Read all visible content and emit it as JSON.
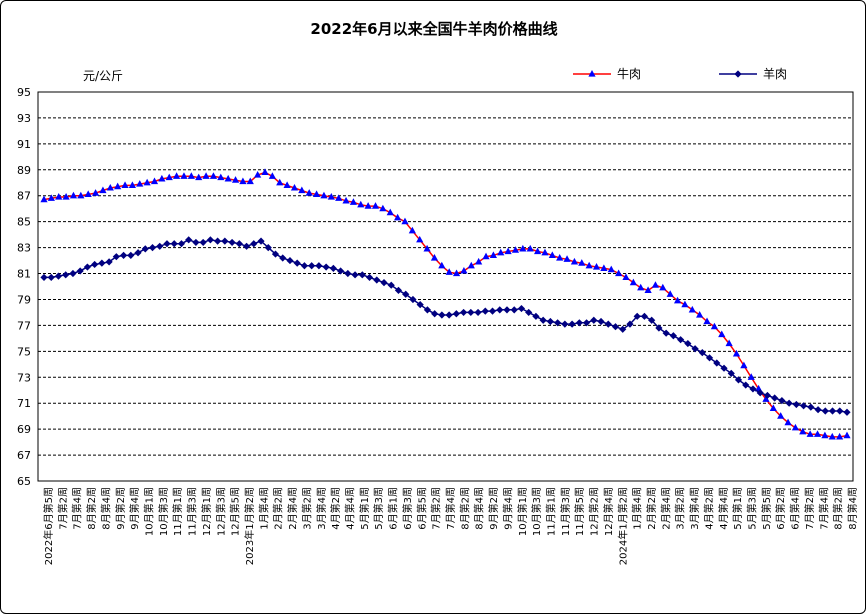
{
  "chart_data": {
    "type": "line",
    "title": "2022年6月以来全国牛羊肉价格曲线",
    "ylabel": "元/公斤",
    "xlabel": "",
    "ylim": [
      65,
      95
    ],
    "yticks": [
      65,
      67,
      69,
      71,
      73,
      75,
      77,
      79,
      81,
      83,
      85,
      87,
      89,
      91,
      93,
      95
    ],
    "grid": true,
    "legend_position": "top-right",
    "x_tick_labels": [
      "2022年6月第5周",
      "7月第2周",
      "7月第4周",
      "8月第2周",
      "8月第4周",
      "9月第2周",
      "9月第4周",
      "10月第1周",
      "10月第3周",
      "11月第1周",
      "11月第3周",
      "12月第1周",
      "12月第3周",
      "12月第5周",
      "2023年1月第2周",
      "1月第4周",
      "2月第2周",
      "2月第4周",
      "3月第2周",
      "3月第4周",
      "4月第2周",
      "4月第4周",
      "5月第1周",
      "5月第3周",
      "6月第1周",
      "6月第3周",
      "6月第5周",
      "7月第2周",
      "7月第4周",
      "8月第2周",
      "8月第4周",
      "9月第2周",
      "9月第4周",
      "10月第1周",
      "10月第3周",
      "11月第1周",
      "11月第3周",
      "11月第5周",
      "12月第2周",
      "12月第4周",
      "2024年1月第2周",
      "1月第4周",
      "2月第2周",
      "2月第4周",
      "3月第2周",
      "3月第4周",
      "4月第2周",
      "4月第4周",
      "5月第1周",
      "5月第3周",
      "5月第5周",
      "6月第2周",
      "6月第4周",
      "7月第2周",
      "7月第4周",
      "8月第2周",
      "8月第4周"
    ],
    "series": [
      {
        "name": "牛肉",
        "color": "#ff0000",
        "marker": "triangle",
        "marker_color": "#0000ff",
        "values": [
          86.7,
          86.8,
          86.9,
          86.9,
          87.0,
          87.0,
          87.1,
          87.2,
          87.4,
          87.6,
          87.7,
          87.8,
          87.8,
          87.9,
          88.0,
          88.1,
          88.3,
          88.4,
          88.5,
          88.5,
          88.5,
          88.4,
          88.5,
          88.5,
          88.4,
          88.3,
          88.2,
          88.1,
          88.1,
          88.6,
          88.8,
          88.5,
          88.0,
          87.8,
          87.6,
          87.4,
          87.2,
          87.1,
          87.0,
          86.9,
          86.8,
          86.6,
          86.5,
          86.3,
          86.2,
          86.2,
          86.0,
          85.7,
          85.3,
          85.0,
          84.3,
          83.6,
          82.9,
          82.2,
          81.6,
          81.1,
          81.0,
          81.2,
          81.6,
          81.9,
          82.3,
          82.4,
          82.6,
          82.7,
          82.8,
          82.9,
          82.9,
          82.7,
          82.6,
          82.4,
          82.2,
          82.1,
          81.9,
          81.8,
          81.6,
          81.5,
          81.4,
          81.3,
          81.0,
          80.7,
          80.3,
          79.9,
          79.7,
          80.1,
          79.9,
          79.4,
          78.9,
          78.6,
          78.2,
          77.8,
          77.3,
          76.9,
          76.3,
          75.6,
          74.8,
          73.9,
          73.0,
          72.1,
          71.3,
          70.6,
          70.0,
          69.5,
          69.1,
          68.8,
          68.6,
          68.6,
          68.5,
          68.4,
          68.4,
          68.5
        ]
      },
      {
        "name": "羊肉",
        "color": "#000080",
        "marker": "diamond",
        "marker_color": "#000080",
        "values": [
          80.7,
          80.7,
          80.8,
          80.9,
          81.0,
          81.2,
          81.5,
          81.7,
          81.8,
          81.9,
          82.3,
          82.4,
          82.4,
          82.6,
          82.9,
          83.0,
          83.1,
          83.3,
          83.3,
          83.3,
          83.6,
          83.4,
          83.4,
          83.6,
          83.5,
          83.5,
          83.4,
          83.3,
          83.1,
          83.3,
          83.5,
          83.0,
          82.5,
          82.2,
          82.0,
          81.8,
          81.6,
          81.6,
          81.6,
          81.5,
          81.4,
          81.2,
          81.0,
          80.9,
          80.9,
          80.7,
          80.5,
          80.3,
          80.1,
          79.7,
          79.4,
          79.0,
          78.6,
          78.2,
          77.9,
          77.8,
          77.8,
          77.9,
          78.0,
          78.0,
          78.0,
          78.1,
          78.1,
          78.2,
          78.2,
          78.2,
          78.3,
          78.0,
          77.7,
          77.4,
          77.3,
          77.2,
          77.1,
          77.1,
          77.2,
          77.2,
          77.4,
          77.3,
          77.1,
          76.9,
          76.7,
          77.1,
          77.7,
          77.7,
          77.4,
          76.8,
          76.4,
          76.2,
          75.9,
          75.6,
          75.2,
          74.9,
          74.5,
          74.1,
          73.7,
          73.3,
          72.8,
          72.4,
          72.1,
          71.8,
          71.6,
          71.4,
          71.2,
          71.0,
          70.9,
          70.8,
          70.7,
          70.5,
          70.4,
          70.4,
          70.4,
          70.3
        ]
      }
    ]
  }
}
